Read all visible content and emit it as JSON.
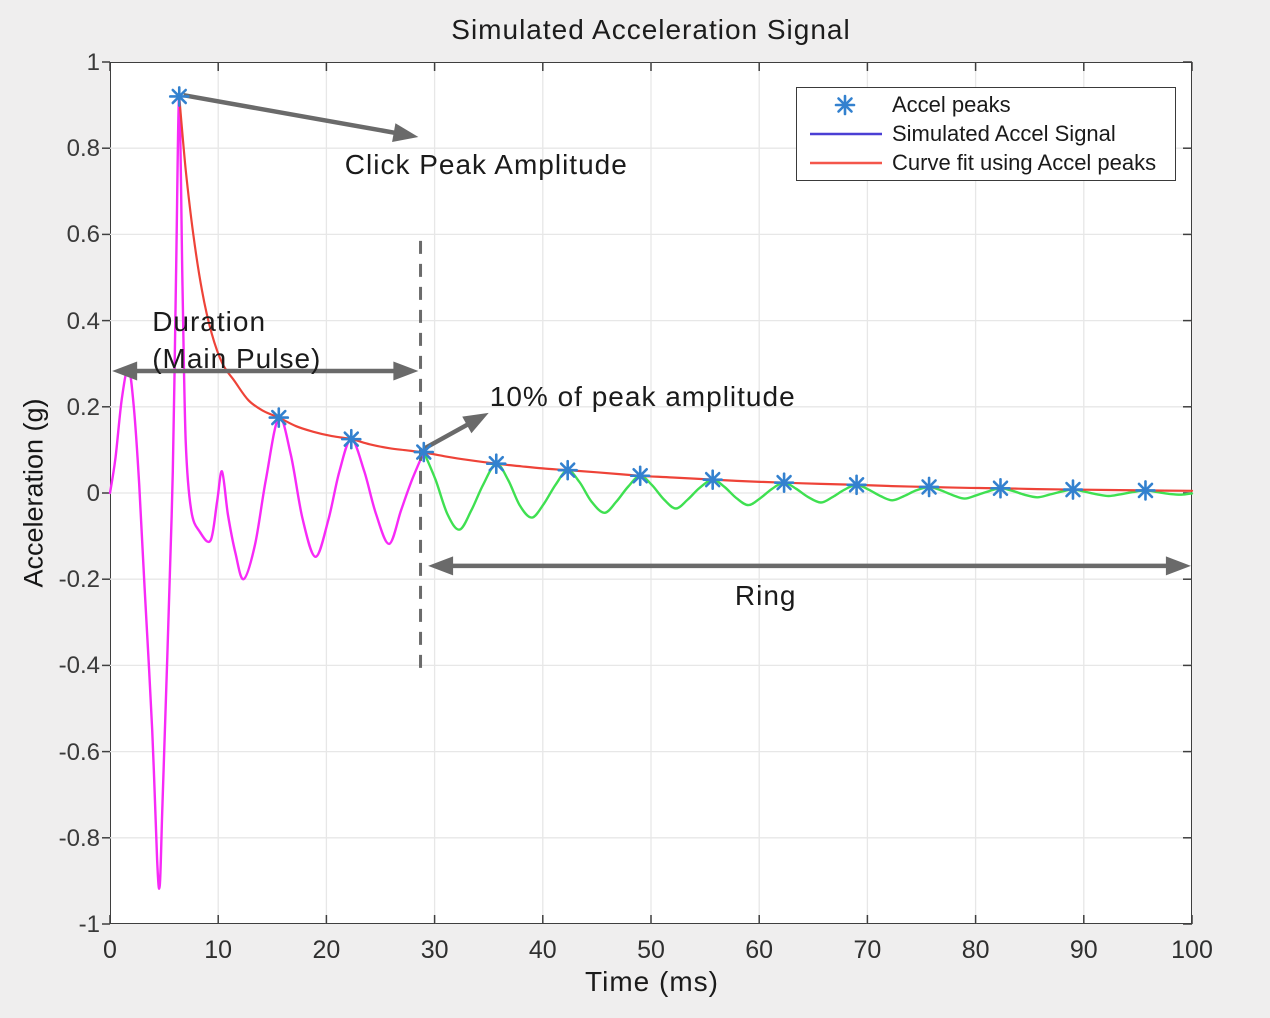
{
  "figure": {
    "title": "Simulated Acceleration Signal",
    "xlabel": "Time (ms)",
    "ylabel": "Acceleration (g)"
  },
  "colors": {
    "background": "#efeeee",
    "plot_background": "#ffffff",
    "grid": "#e7e7e7",
    "axis": "#3f3f3f",
    "main_pulse": "#f72af7",
    "ring": "#3fe051",
    "curve_fit": "#ee4338",
    "legend_signal_line": "#4a3fd4",
    "peak_marker": "#3381cf",
    "annotation_arrow": "#6a6a6a",
    "dashed_line": "#6b6b6b",
    "text": "#1b1b1b"
  },
  "chart_data": {
    "type": "line",
    "title": "Simulated Acceleration Signal",
    "xlabel": "Time (ms)",
    "ylabel": "Acceleration (g)",
    "xlim": [
      0,
      100
    ],
    "ylim": [
      -1,
      1
    ],
    "x_ticks": [
      0,
      10,
      20,
      30,
      40,
      50,
      60,
      70,
      80,
      90,
      100
    ],
    "y_ticks": [
      1,
      0.8,
      0.6,
      0.4,
      0.2,
      0,
      -0.2,
      -0.4,
      -0.6,
      -0.8,
      -1
    ],
    "grid": true,
    "legend": {
      "position": "northeast",
      "entries": [
        {
          "marker": "asterisk",
          "color": "#3381cf",
          "label": "Accel peaks"
        },
        {
          "marker": "line",
          "color": "#4a3fd4",
          "label": "Simulated Accel Signal"
        },
        {
          "marker": "line",
          "color": "#f4564a",
          "label": "Curve fit using Accel peaks"
        }
      ]
    },
    "series": [
      {
        "name": "main-pulse-signal",
        "color": "#f72af7",
        "style": "line",
        "width": 2.4,
        "points": [
          [
            0,
            0
          ],
          [
            0.5,
            0.08
          ],
          [
            1.1,
            0.22
          ],
          [
            1.7,
            0.29
          ],
          [
            2.2,
            0.2
          ],
          [
            2.7,
            0.02
          ],
          [
            3.2,
            -0.22
          ],
          [
            3.9,
            -0.55
          ],
          [
            4.35,
            -0.85
          ],
          [
            4.6,
            -0.91
          ],
          [
            4.85,
            -0.72
          ],
          [
            5.3,
            -0.38
          ],
          [
            5.8,
            0.05
          ],
          [
            6.1,
            0.5
          ],
          [
            6.4,
            0.92
          ],
          [
            6.7,
            0.48
          ],
          [
            7.0,
            0.12
          ],
          [
            7.5,
            -0.04
          ],
          [
            8.3,
            -0.09
          ],
          [
            9.3,
            -0.11
          ],
          [
            9.9,
            -0.02
          ],
          [
            10.35,
            0.05
          ],
          [
            10.9,
            -0.05
          ],
          [
            11.6,
            -0.14
          ],
          [
            12.35,
            -0.2
          ],
          [
            13.4,
            -0.12
          ],
          [
            14.4,
            0.03
          ],
          [
            15.6,
            0.175
          ],
          [
            16.7,
            0.09
          ],
          [
            17.8,
            -0.06
          ],
          [
            19.0,
            -0.148
          ],
          [
            20.2,
            -0.06
          ],
          [
            21.2,
            0.05
          ],
          [
            22.3,
            0.125
          ],
          [
            23.5,
            0.05
          ],
          [
            24.6,
            -0.05
          ],
          [
            25.8,
            -0.118
          ],
          [
            26.9,
            -0.04
          ],
          [
            27.9,
            0.03
          ],
          [
            29.0,
            0.095
          ]
        ]
      },
      {
        "name": "ring-signal",
        "color": "#3fe051",
        "style": "line",
        "width": 2.4,
        "points": [
          [
            29.0,
            0.095
          ],
          [
            30.1,
            0.03
          ],
          [
            31.2,
            -0.05
          ],
          [
            32.3,
            -0.085
          ],
          [
            33.4,
            -0.04
          ],
          [
            34.5,
            0.02
          ],
          [
            35.7,
            0.068
          ],
          [
            36.8,
            0.03
          ],
          [
            37.9,
            -0.03
          ],
          [
            39.0,
            -0.057
          ],
          [
            40.1,
            -0.025
          ],
          [
            41.2,
            0.02
          ],
          [
            42.3,
            0.053
          ],
          [
            43.4,
            0.025
          ],
          [
            44.5,
            -0.02
          ],
          [
            45.7,
            -0.046
          ],
          [
            46.8,
            -0.02
          ],
          [
            47.9,
            0.015
          ],
          [
            49.0,
            0.04
          ],
          [
            50.1,
            0.018
          ],
          [
            51.2,
            -0.015
          ],
          [
            52.3,
            -0.036
          ],
          [
            53.4,
            -0.015
          ],
          [
            54.5,
            0.012
          ],
          [
            55.7,
            0.031
          ],
          [
            56.8,
            0.014
          ],
          [
            57.9,
            -0.012
          ],
          [
            59.0,
            -0.028
          ],
          [
            60.1,
            -0.012
          ],
          [
            61.2,
            0.01
          ],
          [
            62.3,
            0.024
          ],
          [
            63.4,
            0.01
          ],
          [
            64.5,
            -0.009
          ],
          [
            65.7,
            -0.022
          ],
          [
            66.8,
            -0.009
          ],
          [
            67.9,
            0.008
          ],
          [
            69.0,
            0.019
          ],
          [
            70.1,
            0.008
          ],
          [
            71.2,
            -0.007
          ],
          [
            72.3,
            -0.017
          ],
          [
            73.4,
            -0.007
          ],
          [
            74.5,
            0.006
          ],
          [
            75.7,
            0.014
          ],
          [
            76.8,
            0.006
          ],
          [
            77.9,
            -0.005
          ],
          [
            79.0,
            -0.013
          ],
          [
            80.1,
            -0.005
          ],
          [
            81.2,
            0.004
          ],
          [
            82.3,
            0.011
          ],
          [
            83.4,
            0.005
          ],
          [
            84.5,
            -0.004
          ],
          [
            85.7,
            -0.01
          ],
          [
            86.8,
            -0.004
          ],
          [
            87.9,
            0.003
          ],
          [
            89.0,
            0.008
          ],
          [
            90.1,
            0.003
          ],
          [
            91.2,
            -0.003
          ],
          [
            92.3,
            -0.007
          ],
          [
            93.4,
            -0.003
          ],
          [
            94.5,
            0.002
          ],
          [
            95.7,
            0.006
          ],
          [
            96.8,
            0.002
          ],
          [
            97.9,
            -0.002
          ],
          [
            99.0,
            -0.004
          ],
          [
            100,
            -0.001
          ]
        ]
      },
      {
        "name": "curve-fit",
        "color": "#ee4338",
        "style": "line",
        "width": 2.2,
        "points": [
          [
            6.4,
            0.92
          ],
          [
            7.0,
            0.75
          ],
          [
            7.7,
            0.6
          ],
          [
            8.5,
            0.47
          ],
          [
            9.4,
            0.37
          ],
          [
            10.4,
            0.3
          ],
          [
            11.5,
            0.26
          ],
          [
            12.8,
            0.215
          ],
          [
            14.2,
            0.19
          ],
          [
            15.6,
            0.175
          ],
          [
            17.2,
            0.155
          ],
          [
            18.8,
            0.142
          ],
          [
            20.5,
            0.132
          ],
          [
            22.3,
            0.125
          ],
          [
            24.0,
            0.113
          ],
          [
            25.8,
            0.104
          ],
          [
            27.4,
            0.099
          ],
          [
            29.0,
            0.094
          ],
          [
            31,
            0.085
          ],
          [
            33,
            0.077
          ],
          [
            35.7,
            0.068
          ],
          [
            38,
            0.062
          ],
          [
            40,
            0.057
          ],
          [
            42.3,
            0.053
          ],
          [
            45,
            0.048
          ],
          [
            49,
            0.04
          ],
          [
            52,
            0.036
          ],
          [
            55.7,
            0.031
          ],
          [
            59,
            0.027
          ],
          [
            62.3,
            0.024
          ],
          [
            65.7,
            0.021
          ],
          [
            69,
            0.019
          ],
          [
            72.3,
            0.016
          ],
          [
            75.7,
            0.014
          ],
          [
            79,
            0.012
          ],
          [
            82.3,
            0.011
          ],
          [
            85.7,
            0.009
          ],
          [
            89,
            0.008
          ],
          [
            92.3,
            0.007
          ],
          [
            95.7,
            0.006
          ],
          [
            100,
            0.005
          ]
        ]
      },
      {
        "name": "accel-peaks",
        "color": "#3381cf",
        "style": "asterisk-markers",
        "points": [
          [
            6.4,
            0.92
          ],
          [
            15.6,
            0.175
          ],
          [
            22.3,
            0.125
          ],
          [
            29.0,
            0.095
          ],
          [
            35.7,
            0.068
          ],
          [
            42.3,
            0.053
          ],
          [
            49.0,
            0.04
          ],
          [
            55.7,
            0.031
          ],
          [
            62.3,
            0.024
          ],
          [
            69.0,
            0.019
          ],
          [
            75.7,
            0.014
          ],
          [
            82.3,
            0.011
          ],
          [
            89.0,
            0.008
          ],
          [
            95.7,
            0.006
          ]
        ]
      }
    ],
    "annotations": [
      {
        "id": "click-peak",
        "text": "Click Peak Amplitude",
        "text_pos": [
          21.7,
          0.805
        ],
        "anchor": "left-top",
        "arrow": {
          "from": [
            6.8,
            0.923
          ],
          "to": [
            28.5,
            0.826
          ],
          "heads": "end"
        }
      },
      {
        "id": "duration",
        "text": "Duration\n(Main Pulse)",
        "text_pos": [
          3.9,
          0.44
        ],
        "anchor": "left-top",
        "arrow": {
          "from": [
            0.2,
            0.283
          ],
          "to": [
            28.5,
            0.283
          ],
          "heads": "both"
        }
      },
      {
        "id": "ten-percent",
        "text": "10% of peak amplitude",
        "text_pos": [
          35.1,
          0.267
        ],
        "anchor": "left-top",
        "arrow": {
          "from": [
            29.1,
            0.104
          ],
          "to": [
            35.0,
            0.186
          ],
          "heads": "end"
        }
      },
      {
        "id": "ring",
        "text": "Ring",
        "text_pos": [
          60.6,
          -0.195
        ],
        "anchor": "center-top",
        "arrow": {
          "from": [
            29.4,
            -0.169
          ],
          "to": [
            99.9,
            -0.169
          ],
          "heads": "both"
        }
      },
      {
        "id": "threshold-line",
        "style": "dashed-vertical",
        "x": 28.7,
        "y1": 0.585,
        "y2": -0.415
      }
    ]
  }
}
